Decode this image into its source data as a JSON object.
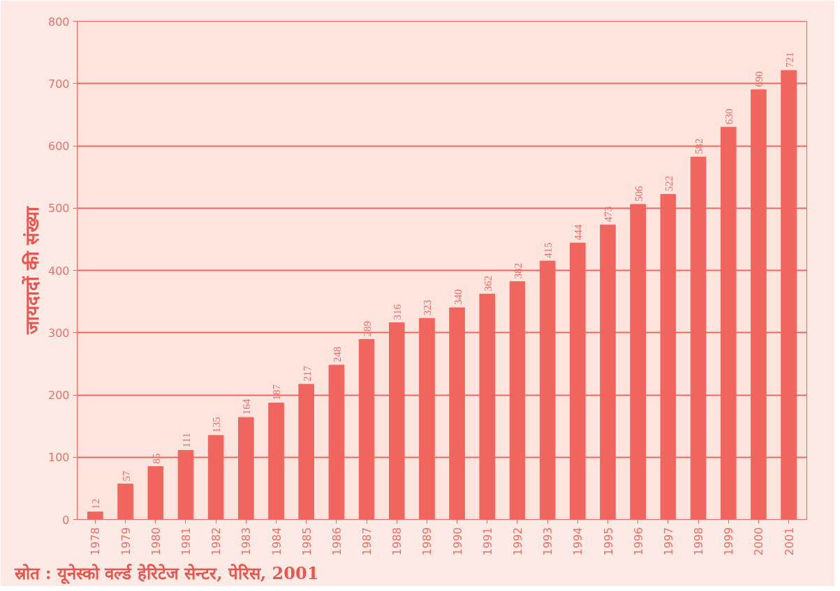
{
  "chart_data": {
    "type": "bar",
    "ylabel": "जायदादों की संख्या",
    "categories": [
      "1978",
      "1979",
      "1980",
      "1981",
      "1982",
      "1983",
      "1984",
      "1985",
      "1986",
      "1987",
      "1988",
      "1989",
      "1990",
      "1991",
      "1992",
      "1993",
      "1994",
      "1995",
      "1996",
      "1997",
      "1998",
      "1999",
      "2000",
      "2001"
    ],
    "values": [
      12,
      57,
      85,
      111,
      135,
      164,
      187,
      217,
      248,
      289,
      316,
      323,
      340,
      362,
      382,
      415,
      444,
      473,
      506,
      522,
      582,
      630,
      690,
      721
    ],
    "color": "#f0665e",
    "ylim": [
      0,
      800
    ],
    "yticks": [
      0,
      100,
      200,
      300,
      400,
      500,
      600,
      700,
      800
    ],
    "grid": "y",
    "data_labels": true,
    "annotations": [
      "स्रोत : यूनेस्को वर्ल्ड हेरिटेज सेन्टर, पेरिस, 2001"
    ]
  }
}
